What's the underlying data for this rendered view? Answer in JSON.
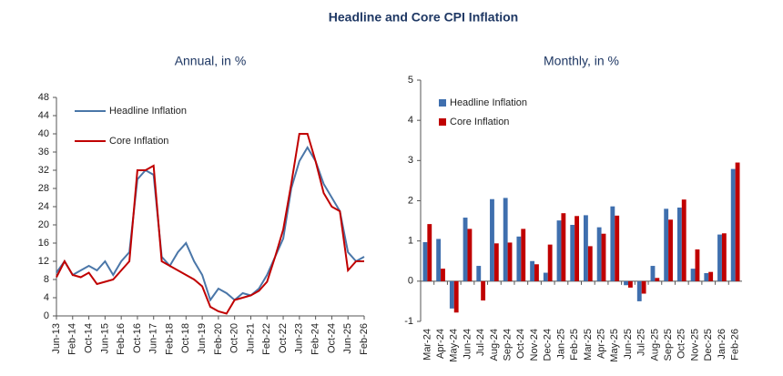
{
  "title": "Headline and Core CPI Inflation",
  "chart_data": [
    {
      "type": "line",
      "title": "Annual, in %",
      "categories": [
        "Jun-13",
        null,
        "Feb-14",
        null,
        "Oct-14",
        null,
        "Jun-15",
        null,
        "Feb-16",
        null,
        "Oct-16",
        null,
        "Jun-17",
        null,
        "Feb-18",
        null,
        "Oct-18",
        null,
        "Jun-19",
        null,
        "Feb-20",
        null,
        "Oct-20",
        null,
        "Jun-21",
        null,
        "Feb-22",
        null,
        "Oct-22",
        null,
        "Jun-23",
        null,
        "Feb-24",
        null,
        "Oct-24",
        null,
        "Jun-25",
        null,
        "Feb-26"
      ],
      "series": [
        {
          "name": "Headline Inflation",
          "color": "#4a76a8",
          "values": [
            9.5,
            12,
            9,
            10,
            11,
            10,
            12,
            9,
            12,
            14,
            30,
            32,
            31,
            13,
            11,
            14,
            16,
            12,
            9,
            3.5,
            6,
            5,
            3.5,
            5,
            4.5,
            6,
            9,
            13,
            17,
            28,
            34,
            37,
            34,
            29,
            26,
            23,
            14,
            12,
            13
          ]
        },
        {
          "name": "Core Inflation",
          "color": "#c00000",
          "values": [
            8.5,
            12,
            9,
            8.5,
            9.5,
            7,
            7.5,
            8,
            10,
            12,
            32,
            32,
            33,
            12,
            11,
            10,
            9,
            8,
            6.5,
            2,
            1,
            0.5,
            3.5,
            4,
            4.5,
            5.5,
            7.5,
            13,
            19,
            29,
            40,
            40,
            34,
            27,
            24,
            23,
            10,
            12,
            12
          ]
        }
      ],
      "ylim": [
        0,
        48
      ],
      "yticks": [
        0,
        4,
        8,
        12,
        16,
        20,
        24,
        28,
        32,
        36,
        40,
        44,
        48
      ],
      "grid": false,
      "legend": "upper left"
    },
    {
      "type": "bar",
      "title": "Monthly, in %",
      "categories": [
        "Mar-24",
        "Apr-24",
        "May-24",
        "Jun-24",
        "Jul-24",
        "Aug-24",
        "Sep-24",
        "Oct-24",
        "Nov-24",
        "Dec-24",
        "Jan-25",
        "Feb-25",
        "Mar-25",
        "Apr-25",
        "May-25",
        "Jun-25",
        "Jul-25",
        "Aug-25",
        "Sep-25",
        "Oct-25",
        "Nov-25",
        "Dec-25",
        "Jan-26",
        "Feb-26"
      ],
      "series": [
        {
          "name": "Headline Inflation",
          "color": "#3f6fae",
          "values": [
            0.97,
            1.05,
            -0.68,
            1.58,
            0.38,
            2.04,
            2.07,
            1.11,
            0.5,
            0.21,
            1.51,
            1.4,
            1.64,
            1.34,
            1.86,
            -0.1,
            -0.5,
            0.38,
            1.8,
            1.83,
            0.31,
            0.2,
            1.16,
            2.79
          ]
        },
        {
          "name": "Core Inflation",
          "color": "#c00000",
          "values": [
            1.42,
            0.31,
            -0.78,
            1.3,
            -0.48,
            0.94,
            0.96,
            1.3,
            0.42,
            0.91,
            1.69,
            1.62,
            0.87,
            1.18,
            1.63,
            -0.16,
            -0.31,
            0.08,
            1.53,
            2.03,
            0.79,
            0.23,
            1.19,
            2.95
          ]
        }
      ],
      "ylim": [
        -1,
        5
      ],
      "yticks": [
        -1,
        0,
        1,
        2,
        3,
        4,
        5
      ],
      "grid": false,
      "legend": "upper left"
    }
  ]
}
